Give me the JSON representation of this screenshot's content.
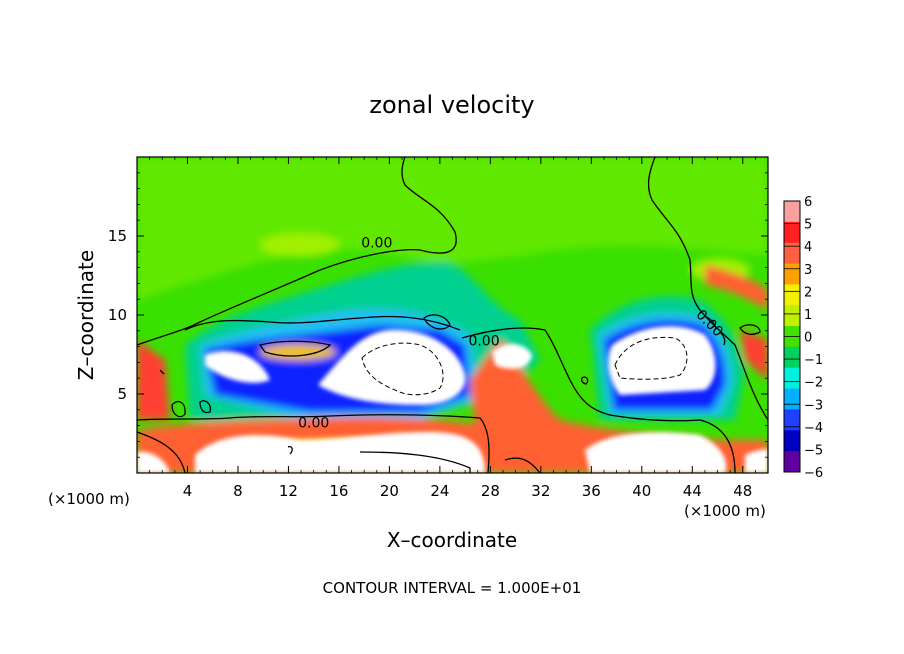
{
  "chart_data": {
    "type": "heatmap",
    "title": "zonal velocity",
    "xlabel": "X–coordinate",
    "ylabel": "Z–coordinate",
    "x_unit_label": "(×1000 m)",
    "y_unit_label": "(×1000 m)",
    "xlim": [
      0,
      50
    ],
    "ylim": [
      0,
      20
    ],
    "x_ticks": [
      4,
      8,
      12,
      16,
      20,
      24,
      28,
      32,
      36,
      40,
      44,
      48
    ],
    "y_ticks": [
      5,
      10,
      15
    ],
    "colorbar": {
      "min": -6,
      "max": 6,
      "tick_labels": [
        "6",
        "5",
        "4",
        "3",
        "2",
        "1",
        "0",
        "−1",
        "−2",
        "−3",
        "−4",
        "−5",
        "−6"
      ],
      "colors": [
        "#f8a0a0",
        "#ff2020",
        "#ff6040",
        "#ffa000",
        "#f0f000",
        "#c0f000",
        "#40e000",
        "#00d060",
        "#00f0e0",
        "#00b0ff",
        "#2040ff",
        "#0000c0",
        "#6000a0"
      ]
    },
    "contour_labels": [
      {
        "text": "0.00",
        "x": 19,
        "z": 14.6
      },
      {
        "text": "0.00",
        "x": 27.5,
        "z": 8.4
      },
      {
        "text": "0.00",
        "x": 14,
        "z": 3.2
      },
      {
        "text": "0.00",
        "x": 45.4,
        "z": 9.5
      }
    ],
    "footer": "CONTOUR INTERVAL =  1.000E+01"
  }
}
